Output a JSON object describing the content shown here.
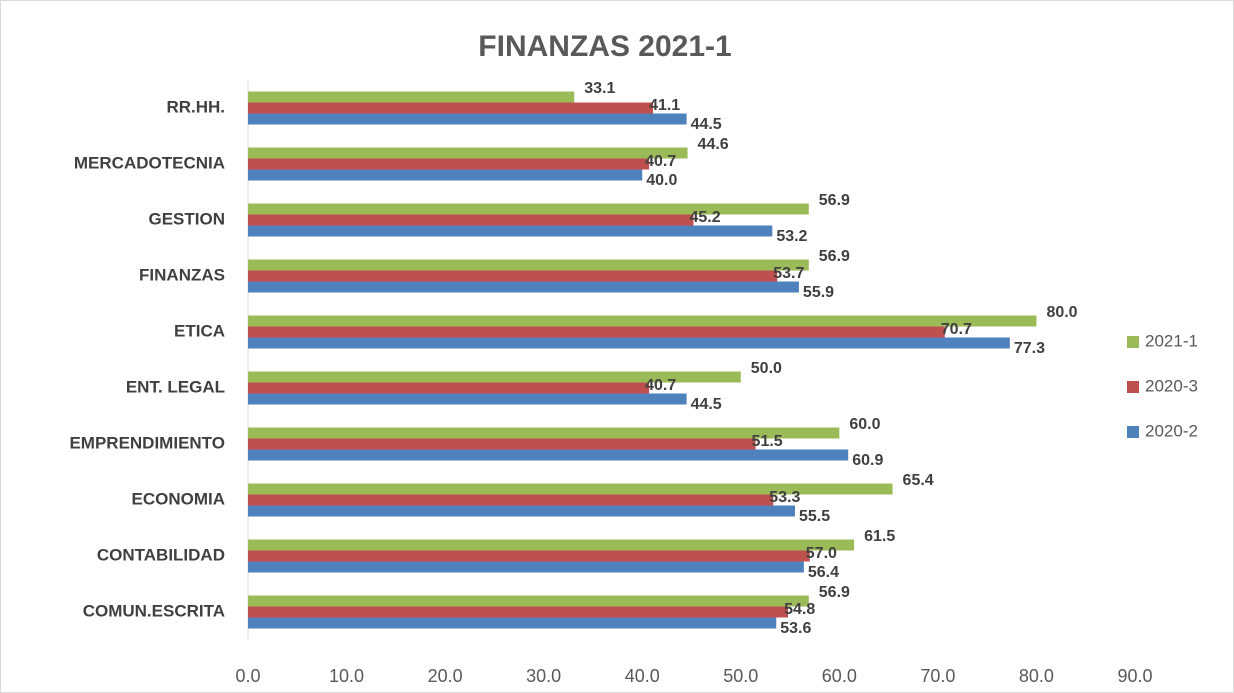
{
  "chart_data": {
    "type": "barh",
    "title": "FINANZAS 2021-1",
    "categories": [
      "RR.HH.",
      "MERCADOTECNIA",
      "GESTION",
      "FINANZAS",
      "ETICA",
      "ENT. LEGAL",
      "EMPRENDIMIENTO",
      "ECONOMIA",
      "CONTABILIDAD",
      "COMUN.ESCRITA"
    ],
    "series": [
      {
        "name": "2021-1",
        "color": "#9bbb59",
        "values": [
          33.1,
          44.6,
          56.9,
          56.9,
          80.0,
          50.0,
          60.0,
          65.4,
          61.5,
          56.9
        ],
        "value_labels": [
          "33.1",
          "44.6",
          "56.9",
          "56.9",
          "80.0",
          "50.0",
          "60.0",
          "65.4",
          "61.5",
          "56.9"
        ]
      },
      {
        "name": "2020-3",
        "color": "#c0504d",
        "values": [
          41.1,
          40.7,
          45.2,
          53.7,
          70.7,
          40.7,
          51.5,
          53.3,
          57.0,
          54.8
        ],
        "value_labels": [
          "41.1",
          "40.7",
          "45.2",
          "53.7",
          "70.7",
          "40.7",
          "51.5",
          "53.3",
          "57.0",
          "54.8"
        ]
      },
      {
        "name": "2020-2",
        "color": "#4f81bd",
        "values": [
          44.5,
          40.0,
          53.2,
          55.9,
          77.3,
          44.5,
          60.9,
          55.5,
          56.4,
          53.6
        ],
        "value_labels": [
          "44.5",
          "40.0",
          "53.2",
          "55.9",
          "77.3",
          "44.5",
          "60.9",
          "55.5",
          "56.4",
          "53.6"
        ]
      }
    ],
    "xlim": [
      0,
      90
    ],
    "xticks": [
      {
        "value": 0,
        "label": "0.0"
      },
      {
        "value": 10,
        "label": "10.0"
      },
      {
        "value": 20,
        "label": "20.0"
      },
      {
        "value": 30,
        "label": "30.0"
      },
      {
        "value": 40,
        "label": "40.0"
      },
      {
        "value": 50,
        "label": "50.0"
      },
      {
        "value": 60,
        "label": "60.0"
      },
      {
        "value": 70,
        "label": "70.0"
      },
      {
        "value": 80,
        "label": "80.0"
      },
      {
        "value": 90,
        "label": "90.0"
      }
    ],
    "legend": "right"
  }
}
